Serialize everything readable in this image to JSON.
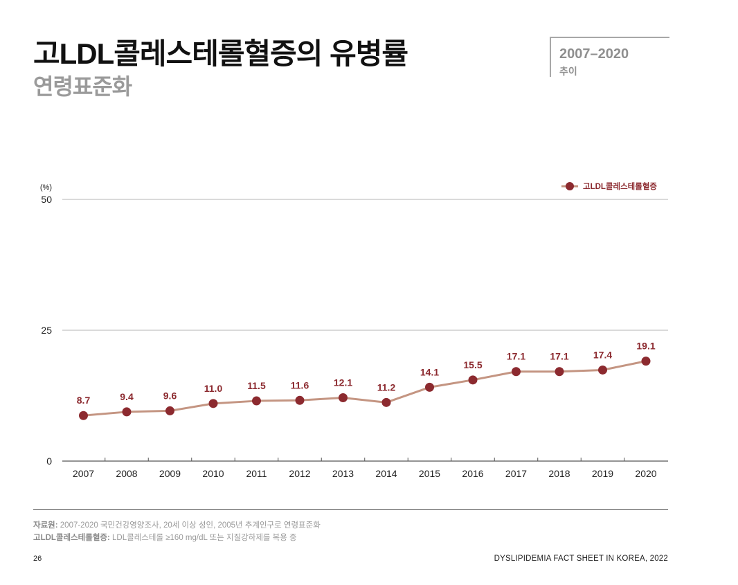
{
  "header": {
    "title": "고LDL콜레스테롤혈증의 유병률",
    "subtitle": "연령표준화",
    "period_range": "2007–2020",
    "period_label": "추이"
  },
  "chart_data": {
    "type": "line",
    "title": "",
    "xlabel": "",
    "ylabel": "",
    "y_unit": "(%)",
    "ylim": [
      0,
      50
    ],
    "y_ticks": [
      0,
      25,
      50
    ],
    "grid": true,
    "legend_position": "top-right",
    "categories": [
      "2007",
      "2008",
      "2009",
      "2010",
      "2011",
      "2012",
      "2013",
      "2014",
      "2015",
      "2016",
      "2017",
      "2018",
      "2019",
      "2020"
    ],
    "series": [
      {
        "name": "고LDL콜레스테롤혈증",
        "values": [
          8.7,
          9.4,
          9.6,
          11.0,
          11.5,
          11.6,
          12.1,
          11.2,
          14.1,
          15.5,
          17.1,
          17.1,
          17.4,
          19.1
        ],
        "labels": [
          "8.7",
          "9.4",
          "9.6",
          "11.0",
          "11.5",
          "11.6",
          "12.1",
          "11.2",
          "14.1",
          "15.5",
          "17.1",
          "17.1",
          "17.4",
          "19.1"
        ],
        "line_color": "#c49582",
        "marker_color": "#8c2a2f",
        "label_color": "#8c2a2f"
      }
    ]
  },
  "footer": {
    "source_label": "자료원:",
    "source_text": " 2007-2020 국민건강영양조사, 20세 이상 성인, 2005년 추계인구로 연령표준화",
    "definition_label": "고LDL콜레스테롤혈증:",
    "definition_text": " LDL콜레스테롤 ≥160 mg/dL 또는 지질강하제를 복용 중",
    "page_number": "26",
    "document_name": "DYSLIPIDEMIA FACT SHEET IN KOREA, 2022"
  }
}
